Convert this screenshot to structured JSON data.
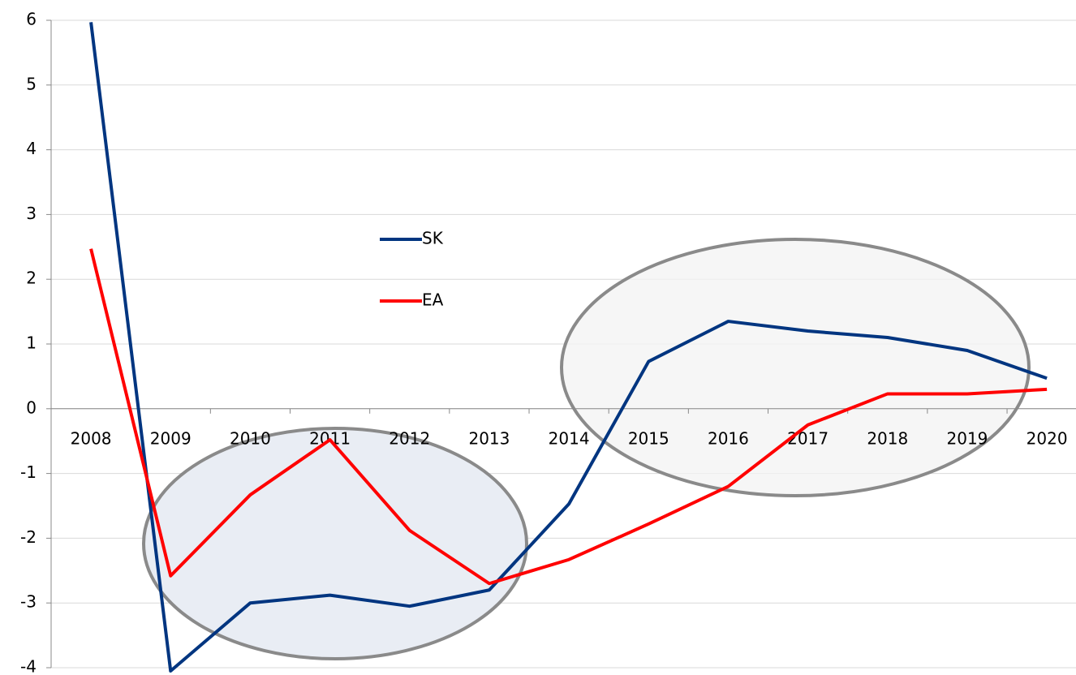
{
  "chart_data": {
    "type": "line",
    "categories": [
      "2008",
      "2009",
      "2010",
      "2011",
      "2012",
      "2013",
      "2014",
      "2015",
      "2016",
      "2017",
      "2018",
      "2019",
      "2020"
    ],
    "series": [
      {
        "name": "SK",
        "color": "#003580",
        "values": [
          5.97,
          -4.05,
          -3.0,
          -2.88,
          -3.05,
          -2.8,
          -1.47,
          0.73,
          1.35,
          1.2,
          1.1,
          0.9,
          0.47
        ]
      },
      {
        "name": "EA",
        "color": "#ff0000",
        "values": [
          2.47,
          -2.58,
          -1.33,
          -0.48,
          -1.88,
          -2.7,
          -2.33,
          -1.78,
          -1.2,
          -0.25,
          0.23,
          0.23,
          0.3
        ]
      }
    ],
    "ylim": [
      -4,
      6
    ],
    "yticks": [
      -4,
      -3,
      -2,
      -1,
      0,
      1,
      2,
      3,
      4,
      5,
      6
    ],
    "grid": true
  }
}
